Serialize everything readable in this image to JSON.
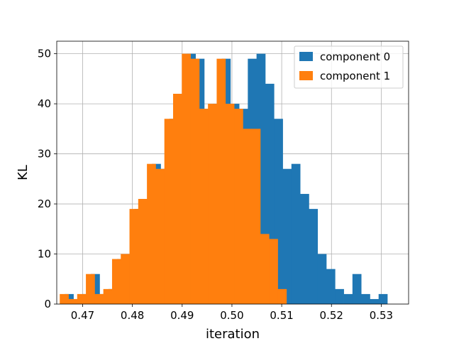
{
  "chart_data": {
    "type": "bar",
    "subtype": "histogram",
    "xlabel": "iteration",
    "ylabel": "KL",
    "xlim": [
      0.4648,
      0.5355
    ],
    "ylim": [
      0,
      52.5
    ],
    "grid": true,
    "legend_position": "top-right",
    "x_ticks": [
      0.47,
      0.48,
      0.49,
      0.5,
      0.51,
      0.52,
      0.53
    ],
    "x_tick_labels": [
      "0.47",
      "0.48",
      "0.49",
      "0.50",
      "0.51",
      "0.52",
      "0.53"
    ],
    "y_ticks": [
      0,
      10,
      20,
      30,
      40,
      50
    ],
    "y_tick_labels": [
      "0",
      "10",
      "20",
      "30",
      "40",
      "50"
    ],
    "series": [
      {
        "name": "component 0",
        "color": "#1f77b4",
        "bin_start": 0.4664,
        "bin_width": 0.001752,
        "counts": [
          2,
          1,
          2,
          6,
          2,
          3,
          9,
          10,
          19,
          21,
          28,
          27,
          37,
          42,
          50,
          49,
          39,
          40,
          49,
          40,
          39,
          49,
          50,
          44,
          37,
          27,
          28,
          22,
          19,
          10,
          7,
          3,
          2,
          6,
          2,
          1,
          2
        ]
      },
      {
        "name": "component 1",
        "color": "#ff7f0e",
        "bin_start": 0.4654,
        "bin_width": 0.001752,
        "counts": [
          2,
          1,
          2,
          6,
          2,
          3,
          9,
          10,
          19,
          21,
          28,
          27,
          37,
          42,
          50,
          49,
          39,
          40,
          49,
          40,
          39,
          35,
          35,
          14,
          13,
          3
        ]
      }
    ]
  }
}
